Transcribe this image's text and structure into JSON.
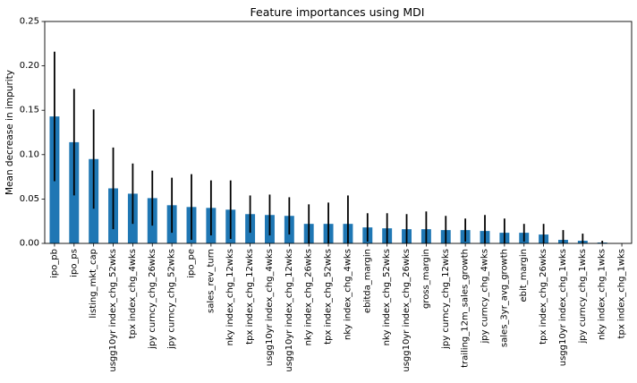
{
  "chart_data": {
    "type": "bar",
    "title": "Feature importances using MDI",
    "xlabel": "",
    "ylabel": "Mean decrease in impurity",
    "ylim": [
      0,
      0.25
    ],
    "yticks": [
      0.0,
      0.05,
      0.1,
      0.15,
      0.2,
      0.25
    ],
    "ytick_labels": [
      "0.00",
      "0.05",
      "0.10",
      "0.15",
      "0.20",
      "0.25"
    ],
    "grid": false,
    "legend": "none",
    "bar_color": "#1f77b4",
    "error_color": "#000000",
    "categories": [
      "ipo_pb",
      "ipo_ps",
      "listing_mkt_cap",
      "usgg10yr index_chg_52wks",
      "tpx index_chg_4wks",
      "jpy curncy_chg_26wks",
      "jpy curncy_chg_52wks",
      "ipo_pe",
      "sales_rev_turn",
      "nky index_chg_12wks",
      "tpx index_chg_12wks",
      "usgg10yr index_chg_4wks",
      "usgg10yr index_chg_12wks",
      "nky index_chg_26wks",
      "tpx index_chg_52wks",
      "nky index_chg_4wks",
      "ebitda_margin",
      "nky index_chg_52wks",
      "usgg10yr index_chg_26wks",
      "gross_margin",
      "jpy curncy_chg_12wks",
      "trailing_12m_sales_growth",
      "jpy curncy_chg_4wks",
      "sales_3yr_avg_growth",
      "ebit_margin",
      "tpx index_chg_26wks",
      "usgg10yr index_chg_1wks",
      "jpy curncy_chg_1wks",
      "nky index_chg_1wks",
      "tpx index_chg_1wks"
    ],
    "values": [
      0.143,
      0.114,
      0.095,
      0.062,
      0.056,
      0.051,
      0.043,
      0.041,
      0.04,
      0.038,
      0.033,
      0.032,
      0.031,
      0.022,
      0.022,
      0.022,
      0.018,
      0.017,
      0.016,
      0.016,
      0.015,
      0.015,
      0.014,
      0.012,
      0.012,
      0.01,
      0.004,
      0.003,
      0.001,
      0.0
    ],
    "errors": [
      0.073,
      0.06,
      0.056,
      0.046,
      0.034,
      0.031,
      0.031,
      0.037,
      0.031,
      0.033,
      0.021,
      0.023,
      0.021,
      0.022,
      0.024,
      0.032,
      0.016,
      0.017,
      0.017,
      0.02,
      0.016,
      0.013,
      0.018,
      0.016,
      0.01,
      0.012,
      0.011,
      0.008,
      0.002,
      0.0
    ]
  }
}
